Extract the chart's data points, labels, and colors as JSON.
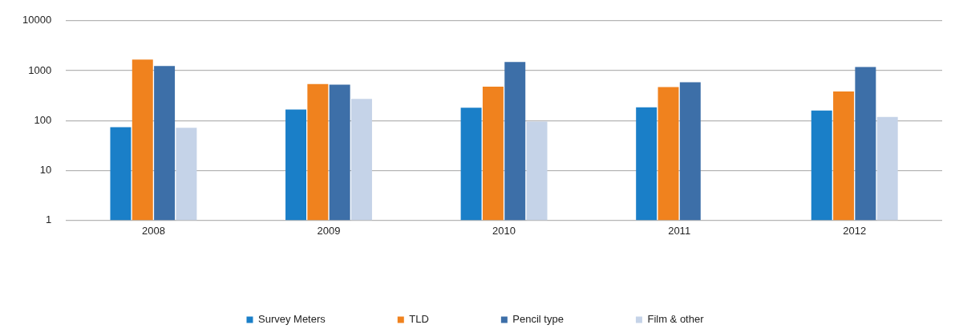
{
  "chart_data": {
    "type": "bar",
    "categories": [
      "2008",
      "2009",
      "2010",
      "2011",
      "2012"
    ],
    "series": [
      {
        "name": "Survey Meters",
        "color": "#1a7fc8",
        "values": [
          73,
          166,
          180,
          183,
          158
        ]
      },
      {
        "name": "TLD",
        "color": "#f0821e",
        "values": [
          1660,
          535,
          475,
          465,
          380
        ]
      },
      {
        "name": "Pencil type",
        "color": "#3d6fa8",
        "values": [
          1230,
          520,
          1480,
          585,
          1180
        ]
      },
      {
        "name": "Film & other",
        "color": "#c5d3e8",
        "values": [
          71,
          270,
          95,
          null,
          118
        ]
      }
    ],
    "log": "y",
    "ylim": [
      1,
      10000
    ],
    "yticks": [
      1,
      10,
      100,
      1000,
      10000
    ],
    "grid": "y",
    "legend": "bottom"
  }
}
